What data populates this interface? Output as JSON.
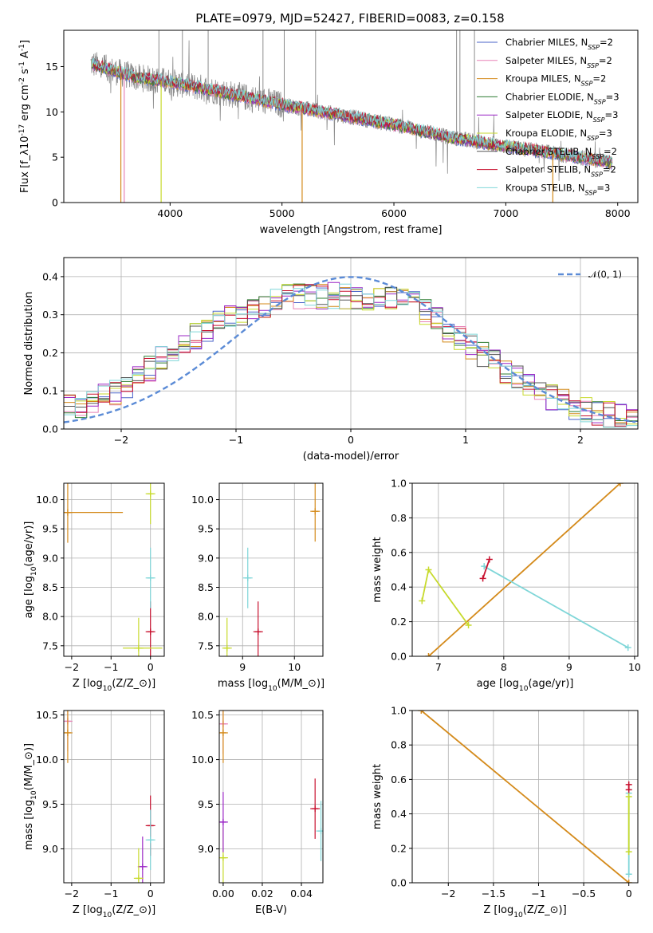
{
  "title": "PLATE=0979, MJD=52427, FIBERID=0083, z=0.158",
  "colors": {
    "chabrier_miles": "#4a63c9",
    "salpeter_miles": "#e882b7",
    "kroupa_miles": "#d48a1a",
    "chabrier_elodie": "#2e7d32",
    "salpeter_elodie": "#9b27c6",
    "kroupa_elodie": "#c7da2c",
    "chabrier_stelib": "#555555",
    "salpeter_stelib": "#c8102e",
    "kroupa_stelib": "#7fd6d8",
    "data": "#8c8c8c",
    "gaussian": "#5b8bd6"
  },
  "chart_data": [
    {
      "type": "line",
      "xlabel": "wavelength [Angstrom, rest frame]",
      "ylabel": "Flux [f$_\\lambda$10$^{-17}$ erg cm$^{-2}$ s$^{-1}$ A$^{-1}$]",
      "xlim": [
        3050,
        8180
      ],
      "ylim": [
        0,
        19
      ],
      "xticks": [
        4000,
        5000,
        6000,
        7000,
        8000
      ],
      "yticks": [
        0,
        5,
        10,
        15
      ],
      "legend_position": "top-right",
      "series": [
        {
          "name": "Chabrier MILES, N_SSP=2",
          "key": "chabrier_miles"
        },
        {
          "name": "Salpeter MILES, N_SSP=2",
          "key": "salpeter_miles"
        },
        {
          "name": "Kroupa MILES, N_SSP=2",
          "key": "kroupa_miles"
        },
        {
          "name": "Chabrier ELODIE, N_SSP=3",
          "key": "chabrier_elodie"
        },
        {
          "name": "Salpeter ELODIE, N_SSP=3",
          "key": "salpeter_elodie"
        },
        {
          "name": "Kroupa ELODIE, N_SSP=3",
          "key": "kroupa_elodie"
        },
        {
          "name": "Chabrier STELIB, N_SSP=2",
          "key": "chabrier_stelib"
        },
        {
          "name": "Salpeter STELIB, N_SSP=2",
          "key": "salpeter_stelib"
        },
        {
          "name": "Kroupa STELIB, N_SSP=3",
          "key": "kroupa_stelib"
        }
      ],
      "model_continuum": {
        "x": [
          3300,
          3500,
          3700,
          4000,
          4300,
          4600,
          5000,
          5500,
          6000,
          6500,
          7000,
          7500,
          7950
        ],
        "y": [
          15.3,
          14.5,
          13.8,
          13.3,
          12.6,
          11.8,
          10.8,
          9.7,
          8.6,
          7.2,
          6.2,
          5.3,
          4.4
        ]
      }
    },
    {
      "type": "line",
      "xlabel": "(data-model)/error",
      "ylabel": "Normed distribution",
      "xlim": [
        -2.5,
        2.5
      ],
      "ylim": [
        0,
        0.45
      ],
      "xticks": [
        -2,
        -1,
        0,
        1,
        2
      ],
      "yticks": [
        0.0,
        0.1,
        0.2,
        0.3,
        0.4
      ],
      "legend_position": "top-right",
      "legend": "$\\mathcal{N}(0, 1)$",
      "gaussian": {
        "mu": 0,
        "sigma": 1
      },
      "histogram_envelope": {
        "x": [
          -2.5,
          -2.0,
          -1.5,
          -1.0,
          -0.5,
          0.0,
          0.5,
          1.0,
          1.5,
          2.0,
          2.5
        ],
        "y": [
          0.05,
          0.1,
          0.22,
          0.3,
          0.35,
          0.35,
          0.34,
          0.23,
          0.12,
          0.05,
          0.025
        ]
      }
    },
    {
      "type": "scatter",
      "xlabel": "Z [log$_{10}$($Z/Z_\\odot$)]",
      "ylabel": "age  [log$_{10}$($age/yr$)]",
      "xlim": [
        -2.2,
        0.35
      ],
      "ylim": [
        7.32,
        10.28
      ],
      "xticks": [
        -2,
        -1,
        0
      ],
      "yticks": [
        7.5,
        8.0,
        8.5,
        9.0,
        9.5,
        10.0
      ],
      "points": [
        {
          "key": "kroupa_miles",
          "x": -2.1,
          "y": 9.78,
          "xerr": [
            0,
            1.4
          ]
        },
        {
          "key": "salpeter_stelib",
          "x": 0.0,
          "y": 7.74
        },
        {
          "key": "kroupa_stelib",
          "x": 0.0,
          "y": 8.66
        },
        {
          "key": "kroupa_elodie",
          "x": 0.0,
          "y": 10.1
        },
        {
          "key": "kroupa_elodie",
          "x": -0.3,
          "y": 7.46,
          "xerr": [
            0.4,
            0.6
          ]
        }
      ]
    },
    {
      "type": "scatter",
      "xlabel": "mass [log$_{10}$($M/M_\\odot$)]",
      "ylabel": "",
      "xlim": [
        8.55,
        10.55
      ],
      "ylim": [
        7.32,
        10.28
      ],
      "xticks": [
        9,
        10
      ],
      "yticks": [
        7.5,
        8.0,
        8.5,
        9.0,
        9.5,
        10.0
      ],
      "points": [
        {
          "key": "kroupa_miles",
          "x": 10.4,
          "y": 9.8
        },
        {
          "key": "salpeter_stelib",
          "x": 9.3,
          "y": 7.74
        },
        {
          "key": "kroupa_stelib",
          "x": 9.1,
          "y": 8.66
        },
        {
          "key": "kroupa_elodie",
          "x": 8.7,
          "y": 7.46
        }
      ]
    },
    {
      "type": "line",
      "xlabel": "age  [log$_{10}$($age/yr$)]",
      "ylabel": "mass weight",
      "xlim": [
        6.6,
        10.05
      ],
      "ylim": [
        0,
        1
      ],
      "xticks": [
        7,
        8,
        9,
        10
      ],
      "yticks": [
        0.0,
        0.2,
        0.4,
        0.6,
        0.8,
        1.0
      ],
      "series": [
        {
          "key": "kroupa_miles",
          "x": [
            6.85,
            9.78
          ],
          "y": [
            0.0,
            1.0
          ]
        },
        {
          "key": "kroupa_elodie",
          "x": [
            6.75,
            6.85,
            7.46
          ],
          "y": [
            0.32,
            0.5,
            0.18
          ]
        },
        {
          "key": "kroupa_stelib",
          "x": [
            7.7,
            9.9
          ],
          "y": [
            0.52,
            0.05
          ]
        },
        {
          "key": "salpeter_stelib",
          "x": [
            7.68,
            7.78
          ],
          "y": [
            0.45,
            0.56
          ]
        }
      ]
    },
    {
      "type": "scatter",
      "xlabel": "Z [log$_{10}$($Z/Z_\\odot$)]",
      "ylabel": "mass [log$_{10}$($M/M_\\odot$)]",
      "xlim": [
        -2.2,
        0.35
      ],
      "ylim": [
        8.62,
        10.55
      ],
      "xticks": [
        -2,
        -1,
        0
      ],
      "yticks": [
        9.0,
        9.5,
        10.0,
        10.5
      ],
      "points": [
        {
          "key": "salpeter_miles",
          "x": -2.1,
          "y": 10.43
        },
        {
          "key": "kroupa_miles",
          "x": -2.1,
          "y": 10.3
        },
        {
          "key": "salpeter_stelib",
          "x": 0.0,
          "y": 9.26
        },
        {
          "key": "kroupa_stelib",
          "x": 0.0,
          "y": 9.1
        },
        {
          "key": "salpeter_elodie",
          "x": -0.2,
          "y": 8.8
        },
        {
          "key": "kroupa_elodie",
          "x": -0.3,
          "y": 8.67
        }
      ]
    },
    {
      "type": "scatter",
      "xlabel": "E(B-V)",
      "ylabel": "",
      "xlim": [
        -0.002,
        0.051
      ],
      "ylim": [
        8.62,
        10.55
      ],
      "xticks": [
        0.0,
        0.02,
        0.04
      ],
      "xtick_labels": [
        "0.00",
        "0.02",
        "0.04"
      ],
      "yticks": [
        9.0,
        9.5,
        10.0,
        10.5
      ],
      "points": [
        {
          "key": "salpeter_miles",
          "x": 0.0,
          "y": 10.4
        },
        {
          "key": "kroupa_miles",
          "x": 0.0,
          "y": 10.3
        },
        {
          "key": "salpeter_stelib",
          "x": 0.047,
          "y": 9.45
        },
        {
          "key": "kroupa_stelib",
          "x": 0.05,
          "y": 9.2
        },
        {
          "key": "kroupa_elodie",
          "x": 0.0,
          "y": 8.9
        },
        {
          "key": "salpeter_elodie",
          "x": 0.0,
          "y": 9.3
        }
      ]
    },
    {
      "type": "line",
      "xlabel": "Z [log$_{10}$($Z/Z_\\odot$)]",
      "ylabel": "mass weight",
      "xlim": [
        -2.4,
        0.1
      ],
      "ylim": [
        0,
        1
      ],
      "xticks": [
        -2.0,
        -1.5,
        -1.0,
        -0.5,
        0.0
      ],
      "yticks": [
        0.0,
        0.2,
        0.4,
        0.6,
        0.8,
        1.0
      ],
      "series": [
        {
          "key": "kroupa_miles",
          "x": [
            -2.3,
            0.0
          ],
          "y": [
            1.0,
            0.0
          ]
        },
        {
          "key": "kroupa_stelib",
          "x": [
            0.0,
            0.0
          ],
          "y": [
            0.05,
            0.52
          ]
        },
        {
          "key": "salpeter_stelib",
          "x": [
            0.0,
            0.0
          ],
          "y": [
            0.54,
            0.57
          ]
        },
        {
          "key": "kroupa_elodie",
          "x": [
            0.0,
            0.0
          ],
          "y": [
            0.18,
            0.5
          ]
        }
      ]
    }
  ]
}
